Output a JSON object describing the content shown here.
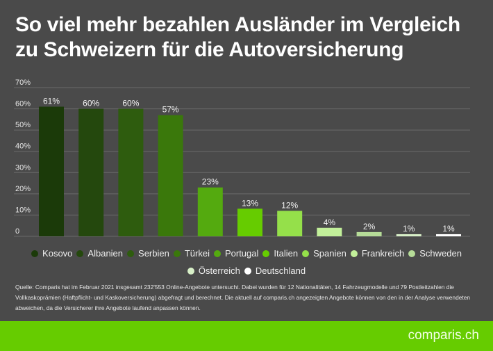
{
  "title": "So viel mehr bezahlen Ausländer im Vergleich zu Schweizern für die Autoversicherung",
  "chart_data": {
    "type": "bar",
    "categories": [
      "Kosovo",
      "Albanien",
      "Serbien",
      "Türkei",
      "Portugal",
      "Italien",
      "Spanien",
      "Frankreich",
      "Schweden",
      "Österreich",
      "Deutschland"
    ],
    "values": [
      61,
      60,
      60,
      57,
      23,
      13,
      12,
      4,
      2,
      1,
      1
    ],
    "data_labels": [
      "61%",
      "60%",
      "60%",
      "57%",
      "23%",
      "13%",
      "12%",
      "4%",
      "2%",
      "1%",
      "1%"
    ],
    "colors": [
      "#1b3a09",
      "#24480d",
      "#2e5c0e",
      "#3a780b",
      "#54aa0f",
      "#66cc00",
      "#95e04a",
      "#c2f09a",
      "#b6dc98",
      "#d8f0c8",
      "#ffffff"
    ],
    "yticks": [
      "0",
      "10%",
      "20%",
      "30%",
      "40%",
      "50%",
      "60%",
      "70%"
    ],
    "ylim": [
      0,
      70
    ],
    "grid": true,
    "legend": "bottom",
    "xlabel": "",
    "ylabel": ""
  },
  "note": "Quelle: Comparis hat im Februar 2021 insgesamt 232'553 Online-Angebote untersucht. Dabei wurden für 12 Nationalitäten, 14 Fahrzeugmodelle und 79 Postleitzahlen die Vollkaskoprämien (Haftpflicht- und Kaskoversicherung) abgefragt und berechnet. Die aktuell auf comparis.ch angezeigten Angebote können von den in der Analyse verwendeten abweichen, da die Versicherer ihre Angebote laufend anpassen können.",
  "footer": {
    "logo": "comparis.ch",
    "color": "#66cc00"
  },
  "background": "#4a4a4a"
}
